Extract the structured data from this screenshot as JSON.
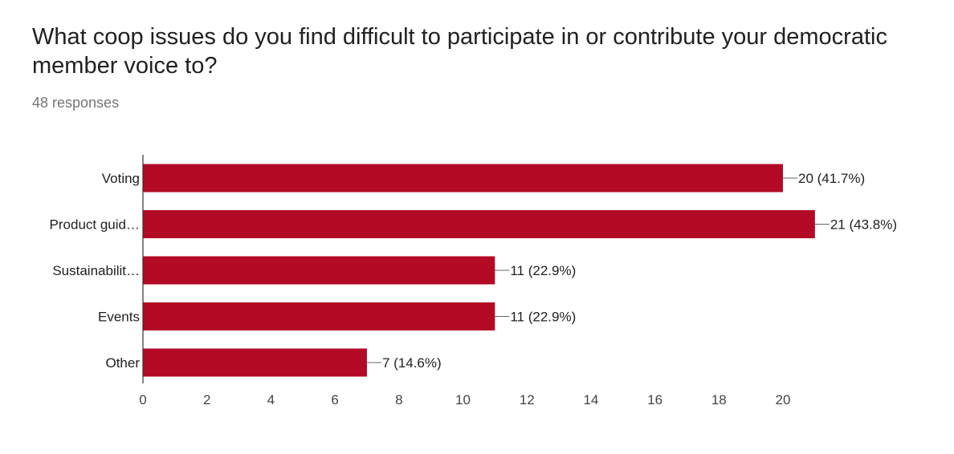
{
  "header": {
    "title": "What coop issues do you find difficult to participate in or contribute your democratic member voice to?",
    "subtitle": "48 responses"
  },
  "colors": {
    "bar": "#b30a25",
    "axis": "#333333",
    "leader": "#666666",
    "text": "#212121",
    "tick": "#444444"
  },
  "chart_data": {
    "type": "bar",
    "orientation": "horizontal",
    "categories": [
      "Voting",
      "Product guid…",
      "Sustainabilit…",
      "Events",
      "Other"
    ],
    "values": [
      20,
      21,
      11,
      11,
      7
    ],
    "data_labels": [
      "20 (41.7%)",
      "21 (43.8%)",
      "11 (22.9%)",
      "11 (22.9%)",
      "7 (14.6%)"
    ],
    "xlim": [
      0,
      21.5
    ],
    "xticks": [
      0,
      2,
      4,
      6,
      8,
      10,
      12,
      14,
      16,
      18,
      20
    ],
    "grid": false,
    "legend": "none"
  }
}
